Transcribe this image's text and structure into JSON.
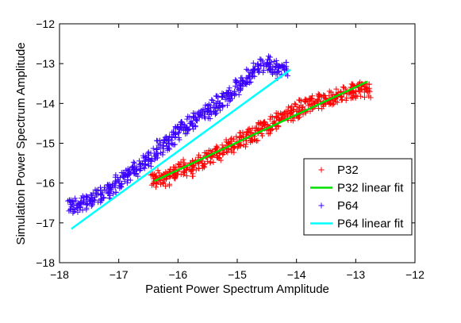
{
  "chart_data": {
    "type": "scatter",
    "title": "",
    "xlabel": "Patient Power Spectrum Amplitude",
    "ylabel": "Simulation Power Spectrum Amplitude",
    "xlim": [
      -18,
      -12
    ],
    "ylim": [
      -18,
      -12
    ],
    "xticks": [
      -18,
      -17,
      -16,
      -15,
      -14,
      -13,
      -12
    ],
    "yticks": [
      -18,
      -17,
      -16,
      -15,
      -14,
      -13,
      -12
    ],
    "grid": false,
    "legend_position": "lower-right",
    "series": [
      {
        "name": "P32",
        "kind": "scatter",
        "marker": "+",
        "color": "#ff0000",
        "points": [
          [
            -16.4,
            -15.95
          ],
          [
            -16.3,
            -15.85
          ],
          [
            -16.2,
            -15.9
          ],
          [
            -16.1,
            -15.75
          ],
          [
            -16.0,
            -15.7
          ],
          [
            -15.9,
            -15.6
          ],
          [
            -15.8,
            -15.65
          ],
          [
            -15.7,
            -15.5
          ],
          [
            -15.6,
            -15.45
          ],
          [
            -15.5,
            -15.35
          ],
          [
            -15.4,
            -15.3
          ],
          [
            -15.3,
            -15.25
          ],
          [
            -15.2,
            -15.1
          ],
          [
            -15.1,
            -15.05
          ],
          [
            -15.0,
            -14.95
          ],
          [
            -14.9,
            -14.9
          ],
          [
            -14.8,
            -14.8
          ],
          [
            -14.7,
            -14.75
          ],
          [
            -14.6,
            -14.65
          ],
          [
            -14.5,
            -14.6
          ],
          [
            -14.4,
            -14.5
          ],
          [
            -14.3,
            -14.4
          ],
          [
            -14.2,
            -14.35
          ],
          [
            -14.1,
            -14.25
          ],
          [
            -14.0,
            -14.2
          ],
          [
            -13.9,
            -14.1
          ],
          [
            -13.8,
            -14.05
          ],
          [
            -13.7,
            -14.0
          ],
          [
            -13.6,
            -13.95
          ],
          [
            -13.5,
            -13.9
          ],
          [
            -13.4,
            -13.85
          ],
          [
            -13.3,
            -13.8
          ],
          [
            -13.2,
            -13.75
          ],
          [
            -13.1,
            -13.7
          ],
          [
            -13.0,
            -13.7
          ],
          [
            -12.9,
            -13.65
          ],
          [
            -12.8,
            -13.7
          ]
        ]
      },
      {
        "name": "P32 linear fit",
        "kind": "line",
        "color": "#00e000",
        "points": [
          [
            -16.4,
            -15.95
          ],
          [
            -12.8,
            -13.45
          ]
        ]
      },
      {
        "name": "P64",
        "kind": "scatter",
        "marker": "+",
        "color": "#3a00ff",
        "points": [
          [
            -17.8,
            -16.6
          ],
          [
            -17.7,
            -16.55
          ],
          [
            -17.6,
            -16.5
          ],
          [
            -17.5,
            -16.45
          ],
          [
            -17.4,
            -16.35
          ],
          [
            -17.3,
            -16.3
          ],
          [
            -17.2,
            -16.2
          ],
          [
            -17.1,
            -16.1
          ],
          [
            -17.0,
            -15.95
          ],
          [
            -16.9,
            -15.85
          ],
          [
            -16.8,
            -15.75
          ],
          [
            -16.7,
            -15.65
          ],
          [
            -16.6,
            -15.5
          ],
          [
            -16.5,
            -15.4
          ],
          [
            -16.4,
            -15.25
          ],
          [
            -16.3,
            -15.1
          ],
          [
            -16.2,
            -15.0
          ],
          [
            -16.1,
            -14.85
          ],
          [
            -16.0,
            -14.75
          ],
          [
            -15.9,
            -14.6
          ],
          [
            -15.8,
            -14.5
          ],
          [
            -15.7,
            -14.4
          ],
          [
            -15.6,
            -14.3
          ],
          [
            -15.5,
            -14.2
          ],
          [
            -15.4,
            -14.1
          ],
          [
            -15.3,
            -14.0
          ],
          [
            -15.2,
            -13.9
          ],
          [
            -15.1,
            -13.8
          ],
          [
            -15.0,
            -13.6
          ],
          [
            -14.9,
            -13.45
          ],
          [
            -14.8,
            -13.3
          ],
          [
            -14.7,
            -13.15
          ],
          [
            -14.6,
            -13.05
          ],
          [
            -14.5,
            -13.0
          ],
          [
            -14.4,
            -13.1
          ],
          [
            -14.3,
            -13.2
          ],
          [
            -14.2,
            -13.15
          ]
        ]
      },
      {
        "name": "P64 linear fit",
        "kind": "line",
        "color": "#00ffff",
        "points": [
          [
            -17.8,
            -17.15
          ],
          [
            -14.1,
            -13.15
          ]
        ]
      }
    ]
  }
}
